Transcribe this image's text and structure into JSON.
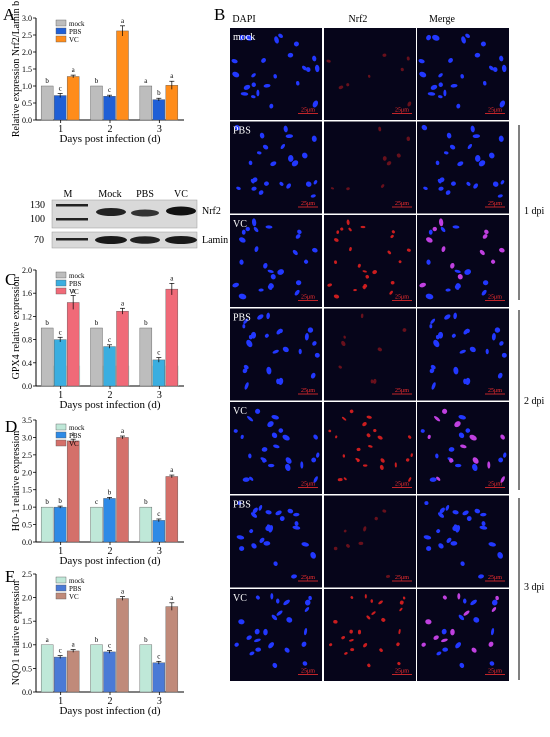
{
  "panel_letters": {
    "A": "A",
    "B": "B",
    "C": "C",
    "D": "D",
    "E": "E"
  },
  "colors": {
    "mock": "#bdbdbd",
    "pbs_A": "#1f5fd6",
    "vc_A": "#ff8c1a",
    "pbs_C": "#3aaee0",
    "vc_C": "#f06a78",
    "pbs_D": "#2e8ae6",
    "vc_D": "#d4706a",
    "pbs_E": "#4a7ad6",
    "vc_E": "#c08a7a",
    "mock_C": "#bfe8d8",
    "micro_bg": "#06051a",
    "dapi": "#2238ff",
    "nrf2": "#e02020",
    "scale": "#ff3030"
  },
  "chart_data": [
    {
      "id": "A",
      "type": "bar",
      "ylabel": "Relative expression Nrf2/Lamin b",
      "xlabel": "Days post infection (d)",
      "categories": [
        "1",
        "2",
        "3"
      ],
      "yticks": [
        "0.0",
        "0.5",
        "1.0",
        "1.5",
        "2.0",
        "2.5",
        "3.0"
      ],
      "ylim": [
        0,
        3.0
      ],
      "series": [
        {
          "name": "mock",
          "values": [
            1.0,
            1.0,
            1.0
          ],
          "errors": [
            0,
            0,
            0
          ],
          "letters": [
            "b",
            "b",
            "a"
          ]
        },
        {
          "name": "PBS",
          "values": [
            0.72,
            0.7,
            0.6
          ],
          "errors": [
            0.06,
            0.03,
            0.04
          ],
          "letters": [
            "c",
            "c",
            "b"
          ]
        },
        {
          "name": "VC",
          "values": [
            1.28,
            2.62,
            1.02
          ],
          "errors": [
            0.04,
            0.15,
            0.12
          ],
          "letters": [
            "a",
            "a",
            "a"
          ]
        }
      ]
    },
    {
      "id": "C",
      "type": "bar",
      "ylabel": "GPX4 relative expression",
      "xlabel": "Days post infection (d)",
      "categories": [
        "1",
        "2",
        "3"
      ],
      "yticks": [
        "0.0",
        "0.4",
        "0.8",
        "1.2",
        "1.6",
        "2.0"
      ],
      "ylim": [
        0,
        2.0
      ],
      "series": [
        {
          "name": "mock",
          "values": [
            1.0,
            1.0,
            1.0
          ],
          "errors": [
            0,
            0,
            0
          ],
          "letters": [
            "b",
            "b",
            "b"
          ]
        },
        {
          "name": "PBS",
          "values": [
            0.8,
            0.68,
            0.45
          ],
          "errors": [
            0.04,
            0.03,
            0.04
          ],
          "letters": [
            "c",
            "c",
            "c"
          ]
        },
        {
          "name": "VC",
          "values": [
            1.44,
            1.29,
            1.67
          ],
          "errors": [
            0.12,
            0.05,
            0.1
          ],
          "letters": [
            "a",
            "a",
            "a"
          ]
        }
      ]
    },
    {
      "id": "D",
      "type": "bar",
      "ylabel": "HO-1 relative expression",
      "xlabel": "Days post infection (d)",
      "categories": [
        "1",
        "2",
        "3"
      ],
      "yticks": [
        "0.0",
        "0.5",
        "1.0",
        "1.5",
        "2.0",
        "2.5",
        "3.0",
        "3.5"
      ],
      "ylim": [
        0,
        3.5
      ],
      "series": [
        {
          "name": "mock",
          "values": [
            1.0,
            1.0,
            1.0
          ],
          "errors": [
            0,
            0,
            0
          ],
          "letters": [
            "b",
            "c",
            "b"
          ]
        },
        {
          "name": "PBS",
          "values": [
            1.0,
            1.25,
            0.62
          ],
          "errors": [
            0.03,
            0.03,
            0.04
          ],
          "letters": [
            "b",
            "b",
            "c"
          ]
        },
        {
          "name": "VC",
          "values": [
            2.9,
            3.0,
            1.88
          ],
          "errors": [
            0.05,
            0.04,
            0.04
          ],
          "letters": [
            "a",
            "a",
            "a"
          ]
        }
      ]
    },
    {
      "id": "E",
      "type": "bar",
      "ylabel": "NQO1 relative expression",
      "xlabel": "Days post infection (d)",
      "categories": [
        "1",
        "2",
        "3"
      ],
      "yticks": [
        "0.0",
        "0.5",
        "1.0",
        "1.5",
        "2.0",
        "2.5"
      ],
      "ylim": [
        0,
        2.5
      ],
      "series": [
        {
          "name": "mock",
          "values": [
            1.0,
            1.0,
            1.0
          ],
          "errors": [
            0,
            0,
            0
          ],
          "letters": [
            "a",
            "b",
            "b"
          ]
        },
        {
          "name": "PBS",
          "values": [
            0.74,
            0.85,
            0.62
          ],
          "errors": [
            0.03,
            0.03,
            0.03
          ],
          "letters": [
            "c",
            "c",
            "c"
          ]
        },
        {
          "name": "VC",
          "values": [
            0.87,
            1.98,
            1.81
          ],
          "errors": [
            0.03,
            0.04,
            0.08
          ],
          "letters": [
            "a",
            "a",
            "a"
          ]
        }
      ]
    }
  ],
  "legend": {
    "mock": "mock",
    "pbs": "PBS",
    "vc": "VC"
  },
  "blot": {
    "lanes": [
      "M",
      "Mock",
      "PBS",
      "VC"
    ],
    "markers": [
      "130",
      "100",
      "70"
    ],
    "labels": [
      "Nrf2",
      "Lamin b"
    ]
  },
  "micro": {
    "columns": [
      "DAPI",
      "Nrf2",
      "Merge"
    ],
    "rows": [
      "mock",
      "PBS",
      "VC",
      "PBS",
      "VC",
      "PBS",
      "VC"
    ],
    "scale_label": "25μm",
    "groups": [
      "1 dpi",
      "2 dpi",
      "3 dpi"
    ]
  }
}
